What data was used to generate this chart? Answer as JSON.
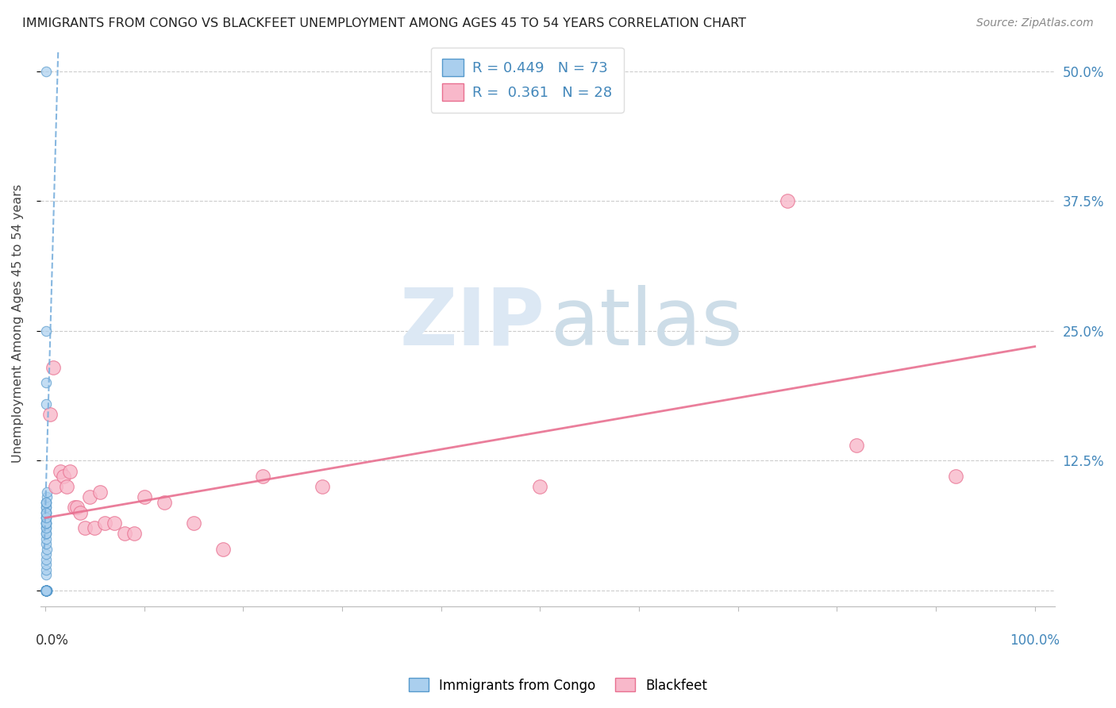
{
  "title": "IMMIGRANTS FROM CONGO VS BLACKFEET UNEMPLOYMENT AMONG AGES 45 TO 54 YEARS CORRELATION CHART",
  "source": "Source: ZipAtlas.com",
  "ylabel": "Unemployment Among Ages 45 to 54 years",
  "yticks": [
    0.0,
    0.125,
    0.25,
    0.375,
    0.5
  ],
  "ytick_labels": [
    "",
    "12.5%",
    "25.0%",
    "37.5%",
    "50.0%"
  ],
  "legend_label1": "Immigrants from Congo",
  "legend_label2": "Blackfeet",
  "R1": "0.449",
  "N1": "73",
  "R2": "0.361",
  "N2": "28",
  "color_blue": "#aacfee",
  "color_blue_edge": "#5599cc",
  "color_blue_line": "#7ab0dd",
  "color_pink": "#f8b8ca",
  "color_pink_edge": "#e87090",
  "color_pink_line": "#e87090",
  "xlim": [
    -0.005,
    1.02
  ],
  "ylim": [
    -0.015,
    0.53
  ],
  "blue_dots_x": [
    0.0008,
    0.001,
    0.0012,
    0.0005,
    0.0015,
    0.0008,
    0.001,
    0.0009,
    0.0011,
    0.0007,
    0.001,
    0.0013,
    0.0006,
    0.0009,
    0.001,
    0.0008,
    0.0012,
    0.0007,
    0.001,
    0.0009,
    0.0006,
    0.0008,
    0.001,
    0.0007,
    0.0009,
    0.0011,
    0.0008,
    0.001,
    0.0009,
    0.0007,
    0.0006,
    0.001,
    0.0008,
    0.0009,
    0.0012,
    0.0007,
    0.001,
    0.0008,
    0.0009,
    0.0011,
    0.0007,
    0.001,
    0.0008,
    0.0006,
    0.0009,
    0.0012,
    0.001,
    0.0008,
    0.0007,
    0.0009,
    0.0011,
    0.0008,
    0.0009,
    0.0007,
    0.001,
    0.0008,
    0.0009,
    0.0007,
    0.001,
    0.0011,
    0.001,
    0.0009,
    0.0008,
    0.0013,
    0.0012,
    0.0007,
    0.001,
    0.0009,
    0.0008,
    0.0011,
    0.0007,
    0.0009,
    0.001
  ],
  "blue_dots_y": [
    0.0,
    0.0,
    0.0,
    0.0,
    0.0,
    0.0,
    0.0,
    0.0,
    0.0,
    0.0,
    0.0,
    0.0,
    0.0,
    0.0,
    0.0,
    0.0,
    0.0,
    0.0,
    0.0,
    0.0,
    0.0,
    0.0,
    0.0,
    0.0,
    0.0,
    0.0,
    0.0,
    0.0,
    0.0,
    0.0,
    0.0,
    0.0,
    0.0,
    0.0,
    0.0,
    0.0,
    0.0,
    0.0,
    0.0,
    0.0,
    0.015,
    0.02,
    0.025,
    0.03,
    0.035,
    0.04,
    0.045,
    0.05,
    0.055,
    0.06,
    0.065,
    0.07,
    0.075,
    0.08,
    0.085,
    0.065,
    0.07,
    0.055,
    0.06,
    0.065,
    0.075,
    0.08,
    0.085,
    0.09,
    0.095,
    0.085,
    0.065,
    0.07,
    0.075,
    0.18,
    0.25,
    0.5,
    0.2
  ],
  "pink_dots_x": [
    0.005,
    0.008,
    0.01,
    0.015,
    0.018,
    0.022,
    0.025,
    0.03,
    0.032,
    0.035,
    0.04,
    0.045,
    0.05,
    0.055,
    0.06,
    0.07,
    0.08,
    0.09,
    0.1,
    0.12,
    0.15,
    0.18,
    0.22,
    0.28,
    0.5,
    0.75,
    0.82,
    0.92
  ],
  "pink_dots_y": [
    0.17,
    0.215,
    0.1,
    0.115,
    0.11,
    0.1,
    0.115,
    0.08,
    0.08,
    0.075,
    0.06,
    0.09,
    0.06,
    0.095,
    0.065,
    0.065,
    0.055,
    0.055,
    0.09,
    0.085,
    0.065,
    0.04,
    0.11,
    0.1,
    0.1,
    0.375,
    0.14,
    0.11
  ],
  "blue_line_x": [
    -0.001,
    0.013
  ],
  "blue_line_y": [
    0.04,
    0.52
  ],
  "pink_line_x": [
    0.0,
    1.0
  ],
  "pink_line_y": [
    0.07,
    0.235
  ]
}
